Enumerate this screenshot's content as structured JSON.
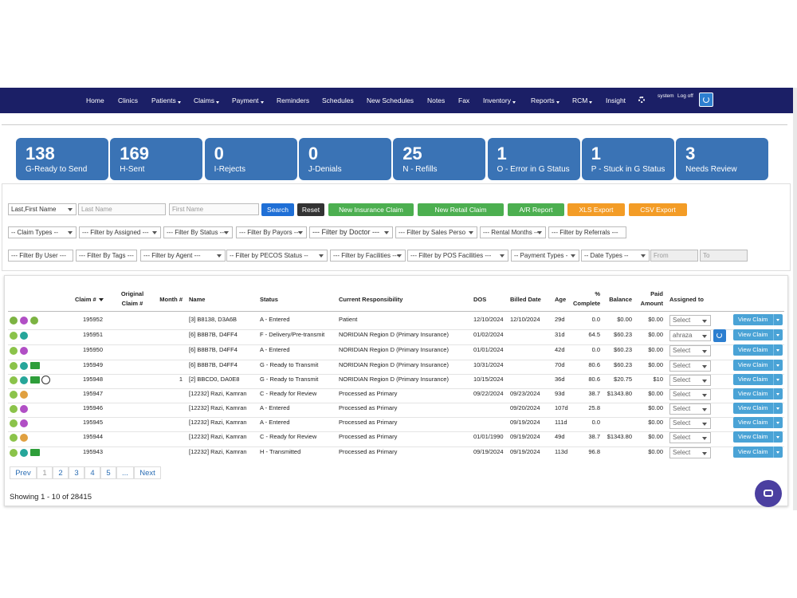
{
  "nav": {
    "items": [
      "Home",
      "Clinics",
      "Patients",
      "Claims",
      "Payment",
      "Reminders",
      "Schedules",
      "New Schedules",
      "Notes",
      "Fax",
      "Inventory",
      "Reports",
      "RCM",
      "Insight"
    ],
    "user": "system",
    "logoff": "Log off"
  },
  "stats": [
    {
      "value": 138,
      "label": "G-Ready to Send"
    },
    {
      "value": 169,
      "label": "H-Sent"
    },
    {
      "value": 0,
      "label": "I-Rejects"
    },
    {
      "value": 0,
      "label": "J-Denials"
    },
    {
      "value": 25,
      "label": "N - Refills"
    },
    {
      "value": 1,
      "label": "O - Error in G Status"
    },
    {
      "value": 1,
      "label": "P - Stuck in G Status"
    },
    {
      "value": 3,
      "label": "Needs Review"
    }
  ],
  "search": {
    "name_mode": "Last,First Name",
    "last_placeholder": "Last Name",
    "first_placeholder": "First Name",
    "buttons": [
      "Search",
      "Reset",
      "New Insurance Claim",
      "New Retail Claim",
      "A/R Report",
      "XLS Export",
      "CSV Export"
    ]
  },
  "filters": [
    [
      "-- Claim Types --",
      "--- Filter by Assigned ---",
      "--- Filter By Status ---",
      "--- Filter By Payors ---",
      "--- Filter by Doctor ---",
      "--- Filter by Sales Perso",
      "--- Rental Months ---",
      "--- Filter by Referrals ---"
    ],
    [
      "--- Filter By User ---",
      "--- Filter By Tags ---",
      "--- Filter by Agent ---",
      "-- Filter by PECOS Status --",
      "--- Filter by Facilities ---",
      "--- Filter by POS Facilities ---",
      "-- Payment Types -",
      "-- Date Types --"
    ]
  ],
  "date_from": "From",
  "date_to": "To",
  "table": {
    "headers": {
      "claim": "Claim #",
      "original": "Original Claim #",
      "month": "Month #",
      "name": "Name",
      "status": "Status",
      "responsibility": "Current Responsibility",
      "dos": "DOS",
      "billed": "Billed Date",
      "age": "Age",
      "complete": "% Complete",
      "balance": "Balance",
      "paid": "Paid Amount",
      "assigned": "Assigned to"
    },
    "select_placeholder": "Select",
    "action": "View Claim",
    "rows": [
      {
        "claim": 195952,
        "name": "[3] B8138, D3A6B",
        "status": "A - Entered",
        "responsibility": "Patient",
        "dos": "12/10/2024",
        "billed": "12/10/2024",
        "age": "29d",
        "complete": "0.0",
        "balance": "$0.00",
        "paid": "$0.00"
      },
      {
        "claim": 195951,
        "name": "[6] B8B7B, D4FF4",
        "status": "F - Delivery/Pre-transmit",
        "responsibility": "NORIDIAN Region D (Primary Insurance)",
        "dos": "01/02/2024",
        "age": "31d",
        "complete": "64.5",
        "balance": "$60.23",
        "paid": "$0.00",
        "assigned": "ahraza"
      },
      {
        "claim": 195950,
        "name": "[6] B8B7B, D4FF4",
        "status": "A - Entered",
        "responsibility": "NORIDIAN Region D (Primary Insurance)",
        "dos": "01/01/2024",
        "age": "42d",
        "complete": "0.0",
        "balance": "$60.23",
        "paid": "$0.00"
      },
      {
        "claim": 195949,
        "name": "[6] B8B7B, D4FF4",
        "status": "G - Ready to Transmit",
        "responsibility": "NORIDIAN Region D (Primary Insurance)",
        "dos": "10/31/2024",
        "age": "70d",
        "complete": "80.6",
        "balance": "$60.23",
        "paid": "$0.00"
      },
      {
        "claim": 195948,
        "month": 1,
        "name": "[2] BBCD0, DA0E8",
        "status": "G - Ready to Transmit",
        "responsibility": "NORIDIAN Region D (Primary Insurance)",
        "dos": "10/15/2024",
        "age": "36d",
        "complete": "80.6",
        "balance": "$20.75",
        "paid": "$10"
      },
      {
        "claim": 195947,
        "name": "[12232] Razi, Kamran",
        "status": "C - Ready for Review",
        "responsibility": "Processed as Primary",
        "dos": "09/22/2024",
        "billed": "09/23/2024",
        "age": "93d",
        "complete": "38.7",
        "balance": "$1343.80",
        "paid": "$0.00"
      },
      {
        "claim": 195946,
        "name": "[12232] Razi, Kamran",
        "status": "A - Entered",
        "responsibility": "Processed as Primary",
        "billed": "09/20/2024",
        "age": "107d",
        "complete": "25.8",
        "paid": "$0.00"
      },
      {
        "claim": 195945,
        "name": "[12232] Razi, Kamran",
        "status": "A - Entered",
        "responsibility": "Processed as Primary",
        "billed": "09/19/2024",
        "age": "111d",
        "complete": "0.0",
        "paid": "$0.00"
      },
      {
        "claim": 195944,
        "name": "[12232] Razi, Kamran",
        "status": "C - Ready for Review",
        "responsibility": "Processed as Primary",
        "dos": "01/01/1990",
        "billed": "09/19/2024",
        "age": "49d",
        "complete": "38.7",
        "balance": "$1343.80",
        "paid": "$0.00"
      },
      {
        "claim": 195943,
        "name": "[12232] Razi, Kamran",
        "status": "H - Transmitted",
        "responsibility": "Processed as Primary",
        "dos": "09/19/2024",
        "billed": "09/19/2024",
        "age": "113d",
        "complete": "96.8",
        "paid": "$0.00"
      }
    ]
  },
  "pagination": [
    "Prev",
    "1",
    "2",
    "3",
    "4",
    "5",
    "...",
    "Next"
  ],
  "footer": "Showing 1 - 10 of 28415"
}
